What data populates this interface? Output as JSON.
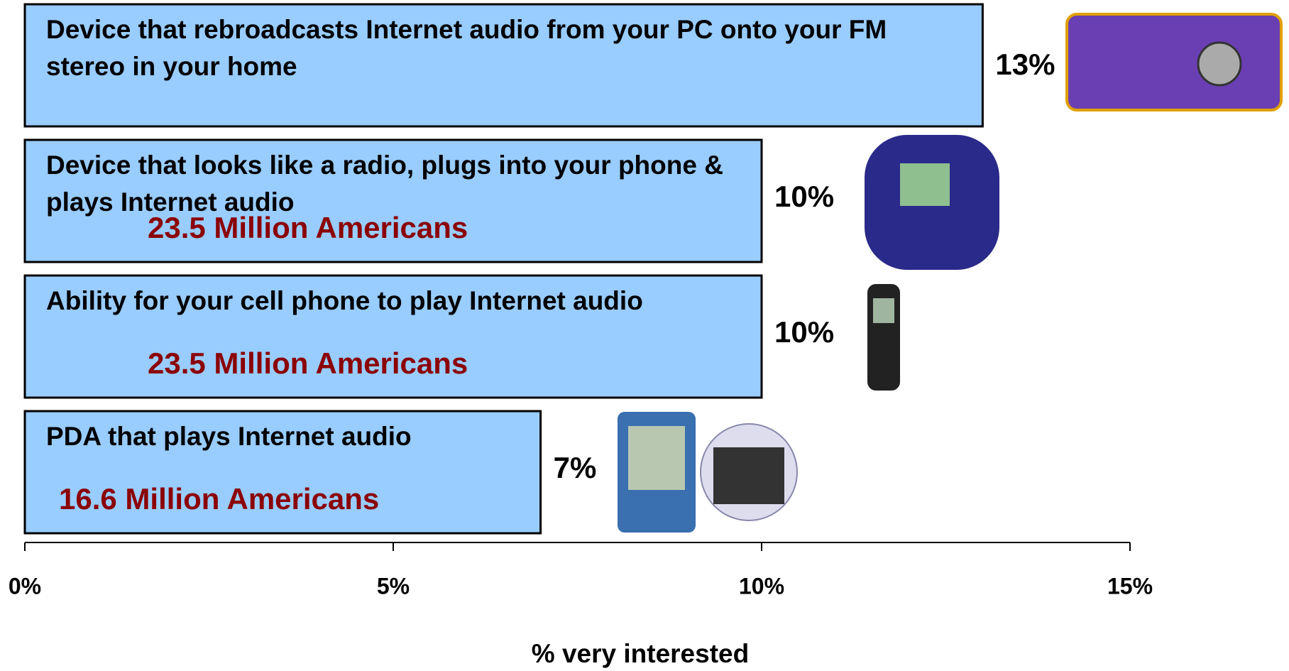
{
  "chart_data": {
    "type": "bar",
    "orientation": "horizontal",
    "categories": [
      "Device that rebroadcasts Internet audio from your PC onto your FM stereo in your home",
      "Device that looks like a radio, plugs into your phone & plays Internet audio",
      "Ability for your cell phone to play Internet audio",
      "PDA that plays Internet audio"
    ],
    "values": [
      13,
      10,
      10,
      7
    ],
    "value_labels": [
      "13%",
      "10%",
      "10%",
      "7%"
    ],
    "value_notes": [
      null,
      "23.5 Million Americans",
      "23.5 Million Americans",
      "16.6 Million Americans"
    ],
    "color": "#99ccff",
    "xlabel": "% very interested",
    "xlim": [
      0,
      15
    ],
    "xticks": [
      {
        "value": 0,
        "label": "0%"
      },
      {
        "value": 5,
        "label": "5%"
      },
      {
        "value": 10,
        "label": "10%"
      },
      {
        "value": 15,
        "label": "15%"
      }
    ],
    "grid": false
  }
}
